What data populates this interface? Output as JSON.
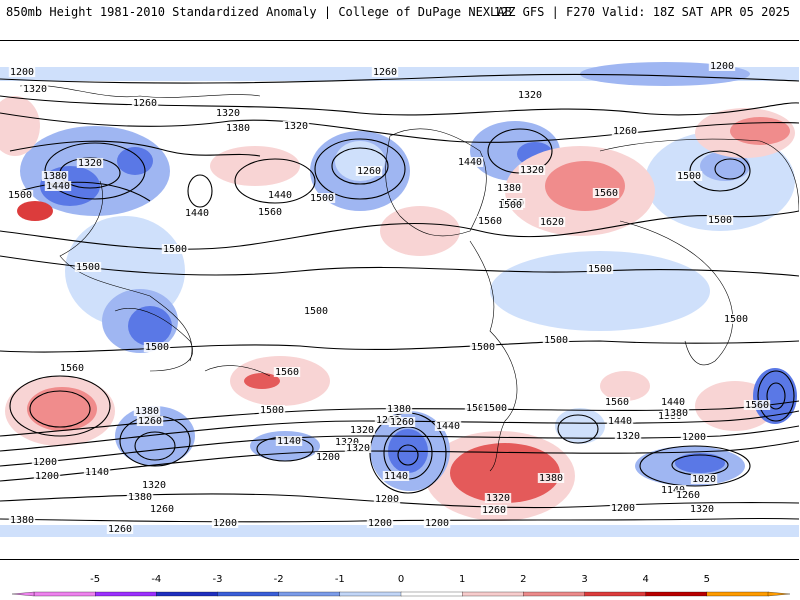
{
  "header": {
    "left": "850mb Height 1981-2010 Standardized Anomaly | College of DuPage NEXLAB",
    "right": "12Z GFS | F270 Valid: 18Z SAT APR 05 2025"
  },
  "colors": {
    "neg_strong": "#5a78e6",
    "neg_mid": "#9fb6f2",
    "neg_light": "#cfe0fb",
    "pos_light": "#f8d4d4",
    "pos_mid": "#f08c8c",
    "pos_strong": "#e45a5a",
    "contour": "#000000"
  },
  "map": {
    "contour_labels": [
      "1200",
      "1260",
      "1200",
      "1320",
      "1260",
      "1320",
      "1380",
      "1320",
      "1320",
      "1500",
      "1380",
      "1440",
      "1320",
      "1440",
      "1500",
      "1440",
      "1560",
      "1500",
      "1260",
      "1440",
      "1380",
      "1500",
      "1560",
      "1620",
      "1560",
      "1260",
      "1320",
      "1500",
      "1500",
      "1500",
      "1500",
      "1500",
      "1500",
      "1500",
      "1500",
      "1500",
      "1500",
      "1560",
      "1560",
      "1560",
      "1500",
      "1440",
      "1380",
      "1260",
      "1380",
      "1260",
      "1320",
      "1500",
      "1440",
      "1320",
      "1140",
      "1320",
      "1200",
      "1380",
      "1260",
      "1140",
      "1200",
      "1140",
      "1320",
      "1380",
      "1200",
      "1260",
      "1380",
      "1320",
      "1260",
      "1200",
      "1200",
      "1200",
      "1140",
      "1260",
      "1200",
      "1320",
      "1020",
      "1560",
      "1380",
      "1440",
      "1500",
      "1320",
      "1200",
      "1380",
      "1260",
      "1200"
    ]
  },
  "colorbar": {
    "ticks": [
      "-5",
      "-4",
      "-3",
      "-2",
      "-1",
      "0",
      "1",
      "2",
      "3",
      "4",
      "5"
    ],
    "colors": [
      "#ee82ee",
      "#9b30ff",
      "#1f2fbf",
      "#3a5fd8",
      "#7b9ce9",
      "#c2d6f7",
      "#ffffff",
      "#f7cccc",
      "#ec8a8a",
      "#dc3c3c",
      "#b80000",
      "#ff9c00"
    ]
  }
}
